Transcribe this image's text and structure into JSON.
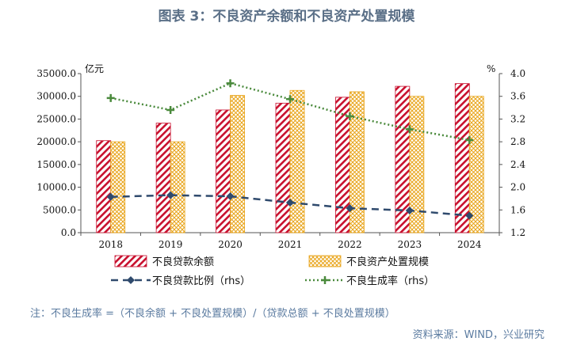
{
  "title": "图表 3：不良资产余额和不良资产处置规模",
  "note": "注：不良生成率 =（不良余额 + 不良处置规模）/（贷款总额 + 不良处置规模）",
  "source": "资料来源：WIND，兴业研究",
  "chart_data": {
    "type": "bar",
    "categories": [
      "2018",
      "2019",
      "2020",
      "2021",
      "2022",
      "2023",
      "2024"
    ],
    "y_left": {
      "unit": "亿元",
      "ylim": [
        0,
        35000
      ],
      "ticks": [
        "0.0",
        "5000.0",
        "10000.0",
        "15000.0",
        "20000.0",
        "25000.0",
        "30000.0",
        "35000.0"
      ]
    },
    "y_right": {
      "unit": "%",
      "ylim": [
        1.2,
        4.0
      ],
      "ticks": [
        "1.2",
        "1.6",
        "2.0",
        "2.4",
        "2.8",
        "3.2",
        "3.6",
        "4.0"
      ]
    },
    "bar_series": [
      {
        "name": "不良贷款余额",
        "color": "#c8102e",
        "values": [
          20250,
          24100,
          27000,
          28500,
          29800,
          32200,
          32800
        ]
      },
      {
        "name": "不良资产处置规模",
        "color": "#e8a317",
        "values": [
          20000,
          20000,
          30200,
          31300,
          31000,
          30000,
          30000
        ]
      }
    ],
    "line_series": [
      {
        "name": "不良贷款比例（rhs）",
        "color": "#2f4a6d",
        "style": "dashed",
        "values": [
          1.83,
          1.86,
          1.84,
          1.73,
          1.63,
          1.59,
          1.5
        ]
      },
      {
        "name": "不良生成率（rhs）",
        "color": "#4a8a3c",
        "style": "dotted",
        "values": [
          3.57,
          3.36,
          3.83,
          3.55,
          3.25,
          3.02,
          2.83
        ]
      }
    ],
    "grid": false,
    "legend_position": "bottom"
  }
}
